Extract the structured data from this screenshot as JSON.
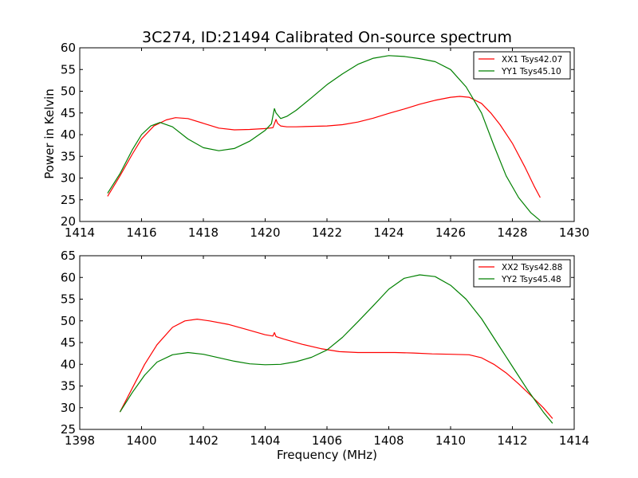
{
  "title": "3C274, ID:21494 Calibrated On-source spectrum",
  "chart_data": [
    {
      "type": "line",
      "ylabel": "Power in Kelvin",
      "xlim": [
        1414,
        1430
      ],
      "ylim": [
        20,
        60
      ],
      "xticks": [
        1414,
        1416,
        1418,
        1420,
        1422,
        1424,
        1426,
        1428,
        1430
      ],
      "yticks": [
        20,
        25,
        30,
        35,
        40,
        45,
        50,
        55,
        60
      ],
      "legend": "top-right",
      "series": [
        {
          "name": "XX1 Tsys42.07",
          "color": "#ff0000",
          "x": [
            1414.9,
            1415.3,
            1415.7,
            1416.0,
            1416.4,
            1416.8,
            1417.1,
            1417.5,
            1418.0,
            1418.5,
            1419.0,
            1419.5,
            1420.0,
            1420.25,
            1420.35,
            1420.4,
            1420.5,
            1420.7,
            1421.0,
            1421.5,
            1422.0,
            1422.5,
            1423.0,
            1423.5,
            1424.0,
            1424.5,
            1425.0,
            1425.5,
            1426.0,
            1426.3,
            1426.6,
            1427.0,
            1427.3,
            1427.6,
            1428.0,
            1428.4,
            1428.7,
            1428.9
          ],
          "y": [
            25.8,
            30.5,
            35.5,
            39.0,
            42.0,
            43.4,
            43.9,
            43.7,
            42.6,
            41.5,
            41.1,
            41.2,
            41.4,
            41.6,
            43.5,
            42.6,
            42.0,
            41.8,
            41.8,
            41.9,
            42.0,
            42.3,
            42.9,
            43.8,
            44.9,
            45.9,
            47.0,
            47.9,
            48.6,
            48.8,
            48.6,
            47.2,
            45.0,
            42.3,
            38.0,
            32.6,
            28.2,
            25.5
          ]
        },
        {
          "name": "YY1 Tsys45.10",
          "color": "#008000",
          "x": [
            1414.9,
            1415.3,
            1415.7,
            1416.0,
            1416.3,
            1416.6,
            1417.0,
            1417.5,
            1418.0,
            1418.5,
            1419.0,
            1419.5,
            1420.0,
            1420.2,
            1420.3,
            1420.35,
            1420.5,
            1420.7,
            1421.0,
            1421.5,
            1422.0,
            1422.5,
            1423.0,
            1423.5,
            1424.0,
            1424.5,
            1425.0,
            1425.5,
            1426.0,
            1426.5,
            1427.0,
            1427.4,
            1427.8,
            1428.2,
            1428.6,
            1428.9
          ],
          "y": [
            26.5,
            31.0,
            36.5,
            40.0,
            42.0,
            42.8,
            41.8,
            39.0,
            37.0,
            36.3,
            36.8,
            38.5,
            41.0,
            42.5,
            46.0,
            45.0,
            43.7,
            44.2,
            45.6,
            48.5,
            51.5,
            54.0,
            56.2,
            57.6,
            58.2,
            58.0,
            57.5,
            56.8,
            55.0,
            51.0,
            45.0,
            37.5,
            30.5,
            25.5,
            22.0,
            20.2
          ]
        }
      ]
    },
    {
      "type": "line",
      "xlabel": "Frequency (MHz)",
      "xlim": [
        1398,
        1414
      ],
      "ylim": [
        25,
        65
      ],
      "xticks": [
        1398,
        1400,
        1402,
        1404,
        1406,
        1408,
        1410,
        1412,
        1414
      ],
      "yticks": [
        25,
        30,
        35,
        40,
        45,
        50,
        55,
        60,
        65
      ],
      "legend": "top-right",
      "series": [
        {
          "name": "XX2 Tsys42.88",
          "color": "#ff0000",
          "x": [
            1399.3,
            1399.7,
            1400.1,
            1400.5,
            1401.0,
            1401.4,
            1401.8,
            1402.2,
            1402.8,
            1403.4,
            1404.0,
            1404.25,
            1404.3,
            1404.35,
            1404.6,
            1405.2,
            1405.8,
            1406.4,
            1407.0,
            1407.6,
            1408.2,
            1408.8,
            1409.4,
            1410.0,
            1410.6,
            1411.0,
            1411.4,
            1411.8,
            1412.2,
            1412.6,
            1413.0,
            1413.3
          ],
          "y": [
            29.0,
            34.5,
            40.0,
            44.5,
            48.5,
            50.0,
            50.4,
            50.0,
            49.2,
            48.0,
            46.8,
            46.5,
            47.3,
            46.4,
            45.8,
            44.6,
            43.6,
            42.9,
            42.7,
            42.7,
            42.7,
            42.6,
            42.4,
            42.3,
            42.2,
            41.5,
            40.0,
            38.0,
            35.5,
            32.8,
            30.0,
            27.5
          ]
        },
        {
          "name": "YY2 Tsys45.48",
          "color": "#008000",
          "x": [
            1399.3,
            1399.7,
            1400.1,
            1400.5,
            1401.0,
            1401.5,
            1402.0,
            1402.5,
            1403.0,
            1403.5,
            1404.0,
            1404.5,
            1405.0,
            1405.5,
            1406.0,
            1406.5,
            1407.0,
            1407.5,
            1408.0,
            1408.5,
            1409.0,
            1409.5,
            1410.0,
            1410.5,
            1411.0,
            1411.5,
            1412.0,
            1412.5,
            1413.0,
            1413.3
          ],
          "y": [
            29.0,
            33.5,
            37.5,
            40.5,
            42.2,
            42.7,
            42.3,
            41.5,
            40.7,
            40.1,
            39.9,
            40.0,
            40.6,
            41.6,
            43.3,
            46.2,
            49.8,
            53.5,
            57.3,
            59.8,
            60.6,
            60.2,
            58.2,
            55.0,
            50.5,
            45.0,
            39.5,
            34.0,
            29.0,
            26.4
          ]
        }
      ]
    }
  ]
}
